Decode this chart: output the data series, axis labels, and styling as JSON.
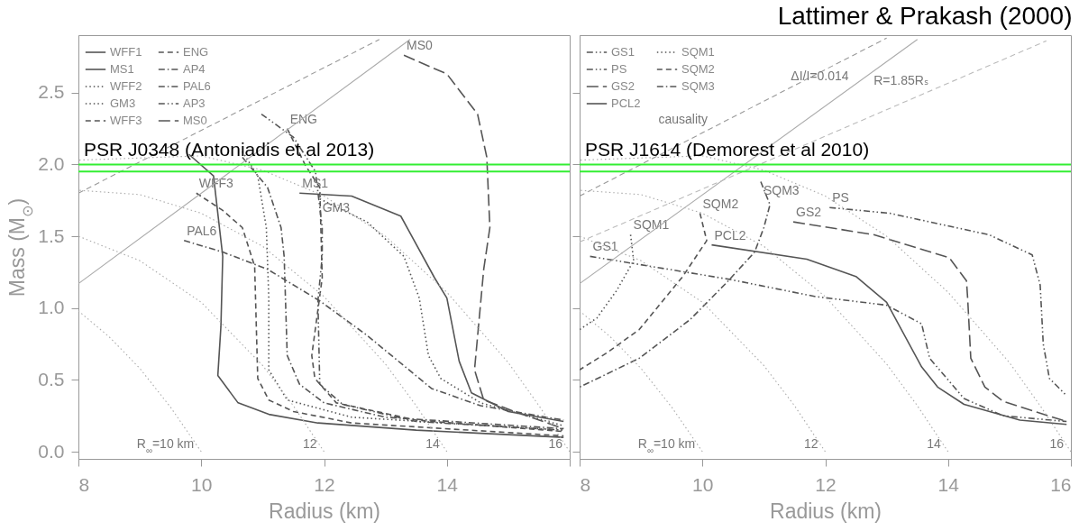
{
  "chart_data": [
    {
      "type": "line",
      "xlabel": "Radius (km)",
      "ylabel": "Mass (M$_{⊙}$)",
      "xlim": [
        8,
        16
      ],
      "ylim": [
        -0.05,
        2.9
      ],
      "xticks": [
        8,
        10,
        12,
        14,
        {
          "value": 16,
          "label": null
        }
      ],
      "yticks": [
        {
          "value": 0,
          "label": "0.0"
        },
        0.5,
        {
          "value": 1,
          "label": "1.0"
        },
        1.5,
        {
          "value": 2,
          "label": "2.0"
        },
        2.5
      ],
      "legend": "top left",
      "series": [
        {
          "name": "WFF1",
          "color": "#555555",
          "line_style": "solid",
          "x": [
            9.8,
            10.2,
            10.35,
            10.32,
            10.27,
            10.6,
            11.1,
            11.9,
            13.5,
            15.9
          ],
          "values": [
            2.07,
            1.92,
            1.36,
            0.87,
            0.53,
            0.34,
            0.26,
            0.2,
            0.15,
            0.1
          ]
        },
        {
          "name": "MS1",
          "color": "#555555",
          "line_style": "solid",
          "x": [
            11.6,
            12.45,
            13.25,
            13.8,
            14.0,
            14.2,
            14.4,
            15.0,
            15.9
          ],
          "values": [
            1.8,
            1.78,
            1.64,
            1.21,
            1.07,
            0.63,
            0.41,
            0.28,
            0.21
          ]
        },
        {
          "name": "WFF2",
          "color": "#555555",
          "line_style": "dotted",
          "x": [
            10.67,
            10.92,
            11.06,
            11.1,
            11.1,
            11.4,
            12.45,
            15.9
          ],
          "values": [
            2.09,
            1.92,
            1.56,
            1.07,
            0.57,
            0.36,
            0.24,
            0.15
          ]
        },
        {
          "name": "GM3",
          "color": "#555555",
          "line_style": "dotted",
          "x": [
            11.93,
            12.7,
            13.3,
            13.55,
            13.7,
            13.9,
            14.55,
            15.9
          ],
          "values": [
            1.76,
            1.6,
            1.36,
            1.07,
            0.67,
            0.51,
            0.34,
            0.18
          ]
        },
        {
          "name": "WFF3",
          "color": "#555555",
          "line_style": "dashed",
          "x": [
            9.92,
            10.35,
            10.67,
            10.87,
            10.92,
            11.1,
            11.5,
            12.45,
            15.9
          ],
          "values": [
            1.8,
            1.68,
            1.56,
            1.29,
            0.51,
            0.36,
            0.28,
            0.2,
            0.11
          ]
        },
        {
          "name": "ENG",
          "color": "#555555",
          "line_style": "dashed",
          "x": [
            11.4,
            11.7,
            11.93,
            11.97,
            11.8,
            11.85,
            12.2,
            13.5,
            15.9
          ],
          "values": [
            2.25,
            1.99,
            1.84,
            1.21,
            0.67,
            0.51,
            0.34,
            0.22,
            0.14
          ]
        },
        {
          "name": "AP4",
          "color": "#555555",
          "line_style": "dashdot",
          "x": [
            10.67,
            11.08,
            11.3,
            11.35,
            11.4,
            11.6,
            12.0,
            13.0,
            15.9
          ],
          "values": [
            2.05,
            1.84,
            1.56,
            1.36,
            0.67,
            0.47,
            0.34,
            0.24,
            0.16
          ]
        },
        {
          "name": "PAL6",
          "color": "#555555",
          "line_style": "dashdot",
          "x": [
            9.72,
            10.35,
            11.08,
            11.93,
            12.7,
            13.75,
            14.55,
            15.9
          ],
          "values": [
            1.47,
            1.39,
            1.27,
            1.05,
            0.81,
            0.44,
            0.32,
            0.22
          ]
        },
        {
          "name": "AP3",
          "color": "#555555",
          "line_style": "dashdotdot",
          "x": [
            10.98,
            11.5,
            11.86,
            11.97,
            11.97,
            11.9,
            11.93,
            12.3,
            13.5,
            15.9
          ],
          "values": [
            2.35,
            2.19,
            1.95,
            1.56,
            1.36,
            1.05,
            0.47,
            0.33,
            0.21,
            0.15
          ]
        },
        {
          "name": "MS0",
          "color": "#555555",
          "line_style": "longdash",
          "x": [
            13.3,
            14.0,
            14.5,
            14.65,
            14.7,
            14.6,
            14.45,
            14.6,
            15.1,
            15.9
          ],
          "values": [
            2.76,
            2.63,
            2.35,
            2.05,
            1.56,
            1.27,
            0.57,
            0.36,
            0.28,
            0.16
          ]
        },
        {
          "color": "#999999",
          "line_style": "dashed",
          "x": [
            8,
            12.9
          ],
          "values": [
            1.8,
            2.87
          ]
        },
        {
          "color": "#aaaaaa",
          "line_style": "solid",
          "x": [
            8,
            13.4
          ],
          "values": [
            1.17,
            2.87
          ]
        },
        {
          "color": "#aaaaaa",
          "line_style": "dotted",
          "x": [
            10,
            9.5,
            9,
            8.5,
            8
          ],
          "values": [
            0,
            0.31,
            0.58,
            0.8,
            0.98
          ]
        },
        {
          "color": "#aaaaaa",
          "line_style": "dotted",
          "x": [
            12,
            11.5,
            11,
            10,
            9,
            8
          ],
          "values": [
            0,
            0.32,
            0.6,
            1.04,
            1.33,
            1.5
          ]
        },
        {
          "color": "#aaaaaa",
          "line_style": "dotted",
          "x": [
            14,
            13.5,
            13,
            12,
            11,
            10,
            9,
            8
          ],
          "values": [
            0,
            0.32,
            0.61,
            1.08,
            1.43,
            1.66,
            1.79,
            1.82
          ]
        },
        {
          "color": "#aaaaaa",
          "line_style": "dotted",
          "x": [
            16,
            15.5,
            15,
            14,
            13,
            12,
            11,
            10,
            8
          ],
          "values": [
            0,
            0.32,
            0.62,
            1.11,
            1.5,
            1.78,
            1.96,
            2.06,
            2.03
          ]
        }
      ],
      "ref_lines": [
        {
          "axis": "y",
          "value": 2.0,
          "label": "PSR J0348 (Antoniadis et al 2013)",
          "color": "#33ee33"
        },
        {
          "axis": "y",
          "value": 1.95,
          "color": "#33ee33"
        }
      ],
      "annotations": [
        {
          "text": "R$_{∞}$=10 km",
          "x": 10,
          "y": 0
        },
        {
          "text": "12",
          "x": 12,
          "y": 0
        },
        {
          "text": "14",
          "x": 14,
          "y": 0
        },
        {
          "text": "16",
          "x": 16,
          "y": 0
        }
      ]
    },
    {
      "type": "line",
      "title": "Lattimer & Prakash (2000)",
      "xlabel": "Radius (km)",
      "xlim": [
        8,
        16
      ],
      "ylim": [
        -0.05,
        2.9
      ],
      "xticks": [
        8,
        10,
        12,
        14,
        16
      ],
      "yticks": [
        0,
        0.5,
        1,
        1.5,
        2,
        2.5
      ],
      "tick_labels": "x",
      "legend": "top left",
      "series": [
        {
          "name": "GS1",
          "color": "#555555",
          "line_style": "dashdotdot",
          "x": [
            8.17,
            8.88,
            10.44,
            11.84,
            13.0,
            13.57,
            13.7,
            14.26,
            14.9,
            15.93
          ],
          "values": [
            1.36,
            1.31,
            1.2,
            1.08,
            1.02,
            0.89,
            0.65,
            0.37,
            0.25,
            0.21
          ]
        },
        {
          "name": "PS",
          "color": "#555555",
          "line_style": "dashdotdot",
          "x": [
            12.07,
            13.05,
            14.67,
            15.37,
            15.5,
            15.55,
            15.65,
            15.93
          ],
          "values": [
            1.7,
            1.66,
            1.51,
            1.37,
            1.16,
            0.75,
            0.51,
            0.39
          ]
        },
        {
          "name": "GS2",
          "color": "#555555",
          "line_style": "longdash",
          "x": [
            11.48,
            12.8,
            14.02,
            14.3,
            14.32,
            14.37,
            14.6,
            14.9,
            15.93
          ],
          "values": [
            1.6,
            1.51,
            1.35,
            1.19,
            1.06,
            0.65,
            0.45,
            0.35,
            0.21
          ]
        },
        {
          "name": "PCL2",
          "color": "#555555",
          "line_style": "solid",
          "x": [
            10.15,
            11.7,
            12.5,
            13.0,
            13.57,
            13.83,
            14.26,
            15.17,
            15.93
          ],
          "values": [
            1.44,
            1.34,
            1.22,
            1.04,
            0.59,
            0.45,
            0.33,
            0.22,
            0.19
          ]
        },
        {
          "name": "SQM1",
          "color": "#555555",
          "line_style": "dotted",
          "x": [
            8.83,
            8.88,
            8.6,
            8.28,
            8.0
          ],
          "values": [
            1.51,
            1.33,
            1.12,
            0.93,
            0.85
          ]
        },
        {
          "name": "SQM2",
          "color": "#555555",
          "line_style": "dashed",
          "x": [
            9.96,
            10.07,
            9.68,
            8.97,
            8.45,
            8.0
          ],
          "values": [
            1.66,
            1.47,
            1.22,
            0.85,
            0.69,
            0.57
          ]
        },
        {
          "name": "SQM3",
          "color": "#555555",
          "line_style": "dashdot",
          "x": [
            10.95,
            11.1,
            11.0,
            10.85,
            10.4,
            9.8,
            8.97,
            8.0
          ],
          "values": [
            1.88,
            1.72,
            1.56,
            1.39,
            1.18,
            0.92,
            0.65,
            0.45
          ]
        },
        {
          "color": "#999999",
          "line_style": "dashed",
          "x": [
            8,
            13.0
          ],
          "values": [
            1.78,
            2.88
          ]
        },
        {
          "color": "#aaaaaa",
          "line_style": "solid",
          "x": [
            8,
            13.5
          ],
          "values": [
            1.17,
            2.87
          ]
        },
        {
          "color": "#bbbbbb",
          "line_style": "dashed",
          "x": [
            8,
            15.6
          ],
          "values": [
            1.46,
            2.86
          ]
        },
        {
          "color": "#aaaaaa",
          "line_style": "dotted",
          "x": [
            10,
            9.5,
            9,
            8.5,
            8
          ],
          "values": [
            0,
            0.31,
            0.58,
            0.8,
            0.98
          ]
        },
        {
          "color": "#aaaaaa",
          "line_style": "dotted",
          "x": [
            12,
            11.5,
            11,
            10,
            9,
            8
          ],
          "values": [
            0,
            0.32,
            0.6,
            1.04,
            1.33,
            1.5
          ]
        },
        {
          "color": "#aaaaaa",
          "line_style": "dotted",
          "x": [
            14,
            13.5,
            13,
            12,
            11,
            10,
            9,
            8
          ],
          "values": [
            0,
            0.32,
            0.61,
            1.08,
            1.43,
            1.66,
            1.79,
            1.82
          ]
        },
        {
          "color": "#aaaaaa",
          "line_style": "dotted",
          "x": [
            16,
            15.5,
            15,
            14,
            13,
            12,
            11,
            10,
            8
          ],
          "values": [
            0,
            0.32,
            0.62,
            1.11,
            1.5,
            1.78,
            1.96,
            2.06,
            2.03
          ]
        }
      ],
      "ref_lines": [
        {
          "axis": "y",
          "value": 2.0,
          "label": "PSR J1614 (Demorest et al 2010)",
          "color": "#33ee33"
        },
        {
          "axis": "y",
          "value": 1.95,
          "color": "#33ee33"
        }
      ],
      "annotations": [
        {
          "text": "causality",
          "x": 10.2,
          "y": 2.26
        },
        {
          "text": "ΔI/I=0.014",
          "x": 12.5,
          "y": 2.56
        },
        {
          "text": "R=1.85Rₛ",
          "x": 13.8,
          "y": 2.53
        },
        {
          "text": "R$_{∞}$=10 km",
          "x": 10,
          "y": 0
        },
        {
          "text": "12",
          "x": 12,
          "y": 0
        },
        {
          "text": "14",
          "x": 14,
          "y": 0
        },
        {
          "text": "16",
          "x": 16,
          "y": 0
        }
      ]
    }
  ]
}
